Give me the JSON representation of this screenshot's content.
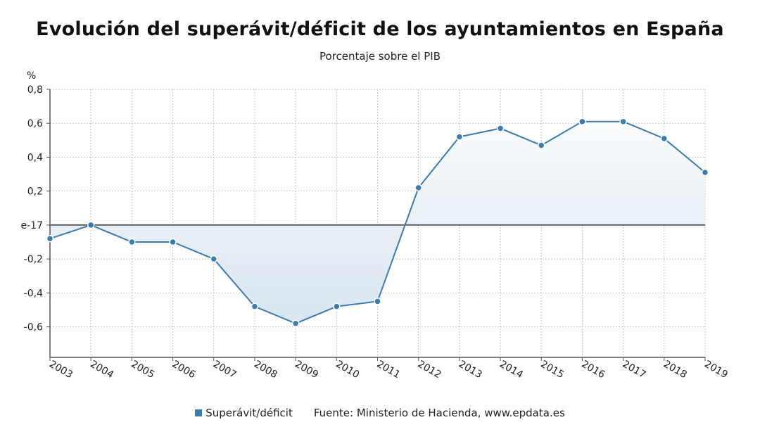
{
  "chart_data": {
    "type": "area",
    "title": "Evolución del superávit/déficit de los ayuntamientos en España",
    "subtitle": "Porcentaje sobre el PIB",
    "ylabel": "%",
    "xlabel": "",
    "categories": [
      "2003",
      "2004",
      "2005",
      "2006",
      "2007",
      "2008",
      "2009",
      "2010",
      "2011",
      "2012",
      "2013",
      "2014",
      "2015",
      "2016",
      "2017",
      "2018",
      "2019"
    ],
    "series": [
      {
        "name": "Superávit/déficit",
        "color": "#3a7cb0",
        "values": [
          -0.08,
          0.0,
          -0.1,
          -0.1,
          -0.2,
          -0.48,
          -0.58,
          -0.48,
          -0.45,
          0.22,
          0.52,
          0.57,
          0.47,
          0.61,
          0.61,
          0.51,
          0.31
        ]
      }
    ],
    "ylim": [
      -0.78,
      0.8
    ],
    "yticks": [
      0.8,
      0.6,
      0.4,
      0.2,
      0.0,
      -0.2,
      -0.4,
      -0.6
    ],
    "ytick_labels": [
      "0,8",
      "0,6",
      "0,4",
      "0,2",
      "e-17",
      "-0,2",
      "-0,4",
      "-0,6"
    ],
    "grid": true,
    "legend_position": "bottom"
  },
  "legend": {
    "series_label": "Superávit/déficit",
    "source": "Fuente: Ministerio de Hacienda, www.epdata.es"
  }
}
